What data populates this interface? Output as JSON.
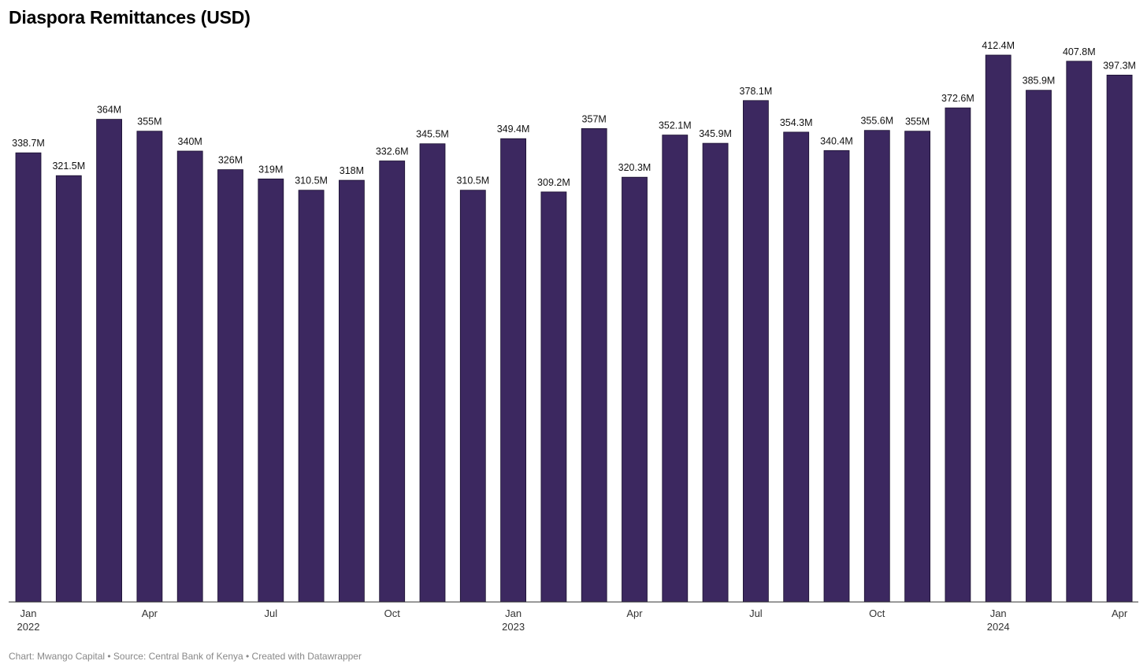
{
  "chart_data": {
    "type": "bar",
    "title": "Diaspora Remittances (USD)",
    "categories": [
      "Jan 2022",
      "Feb 2022",
      "Mar 2022",
      "Apr 2022",
      "May 2022",
      "Jun 2022",
      "Jul 2022",
      "Aug 2022",
      "Sep 2022",
      "Oct 2022",
      "Nov 2022",
      "Dec 2022",
      "Jan 2023",
      "Feb 2023",
      "Mar 2023",
      "Apr 2023",
      "May 2023",
      "Jun 2023",
      "Jul 2023",
      "Aug 2023",
      "Sep 2023",
      "Oct 2023",
      "Nov 2023",
      "Dec 2023",
      "Jan 2024",
      "Feb 2024",
      "Mar 2024",
      "Apr 2024"
    ],
    "values": [
      338.7,
      321.5,
      364,
      355,
      340,
      326,
      319,
      310.5,
      318,
      332.6,
      345.5,
      310.5,
      349.4,
      309.2,
      357,
      320.3,
      352.1,
      345.9,
      378.1,
      354.3,
      340.4,
      355.6,
      355,
      372.6,
      412.4,
      385.9,
      407.8,
      397.3
    ],
    "value_labels": [
      "338.7M",
      "321.5M",
      "364M",
      "355M",
      "340M",
      "326M",
      "319M",
      "310.5M",
      "318M",
      "332.6M",
      "345.5M",
      "310.5M",
      "349.4M",
      "309.2M",
      "357M",
      "320.3M",
      "352.1M",
      "345.9M",
      "378.1M",
      "354.3M",
      "340.4M",
      "355.6M",
      "355M",
      "372.6M",
      "412.4M",
      "385.9M",
      "407.8M",
      "397.3M"
    ],
    "x_ticks": [
      {
        "index": 0,
        "label": "Jan",
        "year": "2022"
      },
      {
        "index": 3,
        "label": "Apr",
        "year": ""
      },
      {
        "index": 6,
        "label": "Jul",
        "year": ""
      },
      {
        "index": 9,
        "label": "Oct",
        "year": ""
      },
      {
        "index": 12,
        "label": "Jan",
        "year": "2023"
      },
      {
        "index": 15,
        "label": "Apr",
        "year": ""
      },
      {
        "index": 18,
        "label": "Jul",
        "year": ""
      },
      {
        "index": 21,
        "label": "Oct",
        "year": ""
      },
      {
        "index": 24,
        "label": "Jan",
        "year": "2024"
      },
      {
        "index": 27,
        "label": "Apr",
        "year": ""
      }
    ],
    "ylim": [
      0,
      412.4
    ],
    "grid": false,
    "bar_color": "#3c2860"
  },
  "footer": "Chart: Mwango Capital • Source: Central Bank of Kenya • Created with Datawrapper"
}
